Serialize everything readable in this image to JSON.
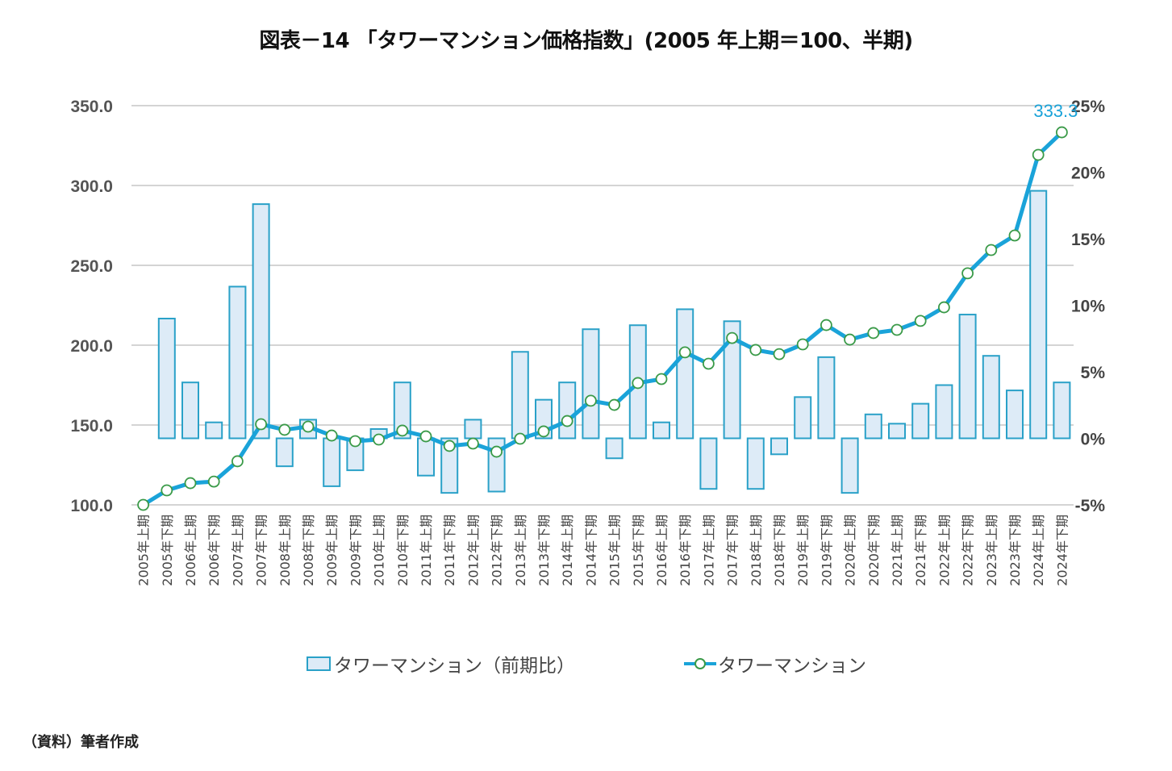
{
  "chart_data": {
    "type": "bar+line",
    "title": "図表－14 「タワーマンション価格指数」(2005 年上期＝100、半期)",
    "categories": [
      "2005年上期",
      "2005年下期",
      "2006年上期",
      "2006年下期",
      "2007年上期",
      "2007年下期",
      "2008年上期",
      "2008年下期",
      "2009年上期",
      "2009年下期",
      "2010年上期",
      "2010年下期",
      "2011年上期",
      "2011年下期",
      "2012年上期",
      "2012年下期",
      "2013年上期",
      "2013年下期",
      "2014年上期",
      "2014年下期",
      "2015年上期",
      "2015年下期",
      "2016年上期",
      "2016年下期",
      "2017年上期",
      "2017年下期",
      "2018年上期",
      "2018年下期",
      "2019年上期",
      "2019年下期",
      "2020年上期",
      "2020年下期",
      "2021年上期",
      "2021年下期",
      "2022年上期",
      "2022年下期",
      "2023年上期",
      "2023年下期",
      "2024年上期",
      "2024年下期"
    ],
    "series": [
      {
        "name": "タワーマンション（前期比）",
        "type": "bar",
        "axis": "right",
        "unit": "%",
        "values": [
          null,
          9.0,
          4.2,
          1.2,
          11.4,
          17.6,
          -2.1,
          1.4,
          -3.6,
          -2.4,
          0.7,
          4.2,
          -2.8,
          -4.1,
          1.4,
          -4.0,
          6.5,
          2.9,
          4.2,
          8.2,
          -1.5,
          8.5,
          1.2,
          9.7,
          -3.8,
          8.8,
          -3.8,
          -1.2,
          3.1,
          6.1,
          -4.1,
          1.8,
          1.1,
          2.6,
          4.0,
          9.3,
          6.2,
          3.6,
          18.6,
          4.2
        ]
      },
      {
        "name": "タワーマンション",
        "type": "line",
        "axis": "left",
        "values": [
          100.0,
          109.1,
          113.6,
          114.6,
          127.3,
          150.5,
          147.0,
          149.0,
          143.4,
          139.9,
          140.9,
          146.5,
          142.9,
          136.9,
          138.4,
          133.3,
          141.4,
          146.0,
          152.5,
          165.2,
          162.6,
          176.3,
          178.8,
          195.5,
          188.4,
          204.5,
          197.0,
          194.4,
          200.5,
          212.6,
          203.5,
          207.6,
          209.6,
          215.2,
          223.7,
          245.0,
          259.6,
          268.7,
          319.2,
          333.3
        ]
      }
    ],
    "left_axis": {
      "ylim": [
        100,
        350
      ],
      "ticks": [
        "100.0",
        "150.0",
        "200.0",
        "250.0",
        "300.0",
        "350.0"
      ],
      "tick_values": [
        100,
        150,
        200,
        250,
        300,
        350
      ]
    },
    "right_axis": {
      "ylim": [
        -5,
        25
      ],
      "ticks": [
        "-5%",
        "0%",
        "5%",
        "10%",
        "15%",
        "20%",
        "25%"
      ],
      "tick_values": [
        -5,
        0,
        5,
        10,
        15,
        20,
        25
      ]
    },
    "annotation": {
      "label": "333.3",
      "category": "2024年下期"
    },
    "grid": true,
    "legend": {
      "position": "bottom",
      "entries": [
        "タワーマンション（前期比）",
        "タワーマンション"
      ]
    },
    "colors": {
      "bar_fill": "#ddebf7",
      "bar_stroke": "#2aa1c8",
      "line": "#1aa3d9",
      "marker_stroke": "#3a9a48",
      "marker_fill": "#ffffff",
      "grid": "#d4d4d4",
      "annotation": "#1aa3d9"
    }
  },
  "source": "（資料）筆者作成"
}
